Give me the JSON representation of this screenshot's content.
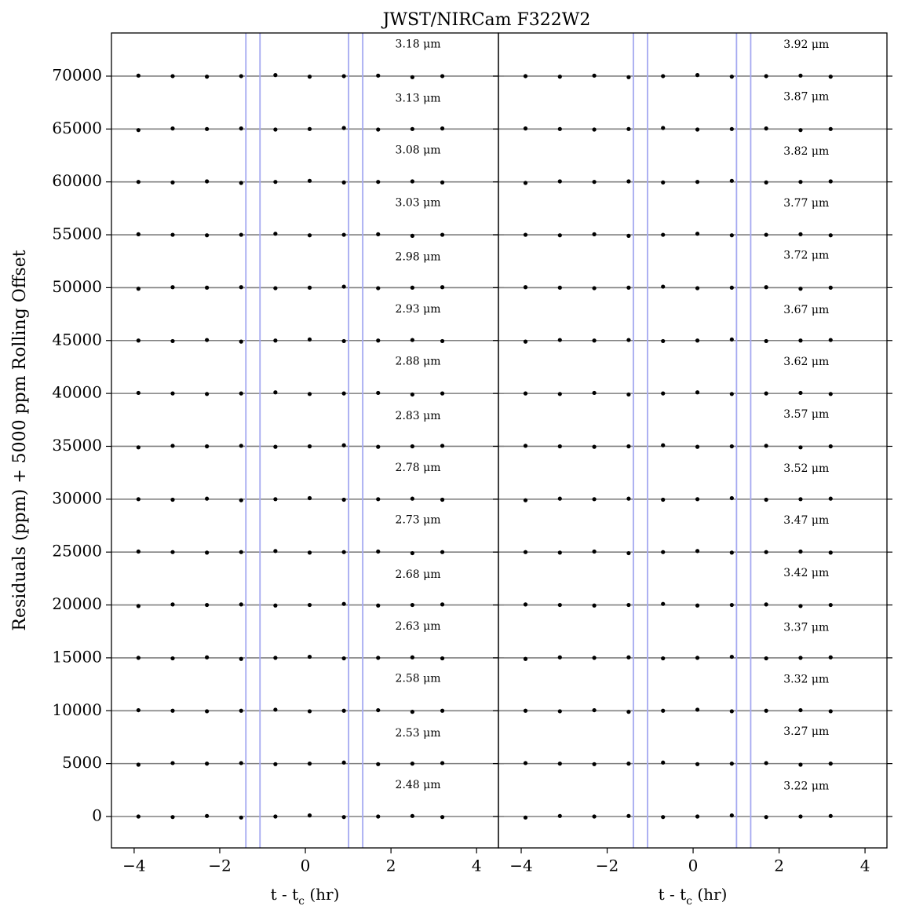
{
  "chart_data": [
    {
      "type": "scatter",
      "title": "JWST/NIRCam F322W2",
      "ylabel": "Residuals (ppm) + 5000 ppm Rolling Offset",
      "xlabel_parts": [
        "t - t",
        "c",
        " (hr)"
      ],
      "show_yticklabels": true,
      "xlim": [
        -4.53,
        4.51
      ],
      "ylim": [
        -2970,
        74080
      ],
      "xticks": [
        {
          "value": -4,
          "label": "−4"
        },
        {
          "value": -2,
          "label": "−2"
        },
        0,
        2,
        4
      ],
      "yticks": [
        0,
        5000,
        10000,
        15000,
        20000,
        25000,
        30000,
        35000,
        40000,
        45000,
        50000,
        55000,
        60000,
        65000,
        70000
      ],
      "grid": true,
      "grid_color": "#808080",
      "vlines": [
        -1.39,
        -1.06,
        1.01,
        1.34
      ],
      "vline_color": "#a4a8f0",
      "x": [
        -3.9,
        -3.1,
        -2.3,
        -1.5,
        -0.7,
        0.1,
        0.9,
        1.7,
        2.5,
        3.2
      ],
      "series": [
        {
          "name": "2.48 μm",
          "color": "#000000",
          "values": [
            0,
            -50,
            50,
            -100,
            0,
            100,
            -50,
            0,
            50,
            -50
          ]
        },
        {
          "name": "2.53 μm",
          "color": "#000000",
          "values": [
            4900,
            5050,
            5000,
            5050,
            4950,
            5000,
            5100,
            4950,
            5000,
            5050
          ]
        },
        {
          "name": "2.58 μm",
          "color": "#000000",
          "values": [
            10050,
            10000,
            9950,
            10000,
            10100,
            9950,
            10000,
            10050,
            9900,
            10000
          ]
        },
        {
          "name": "2.63 μm",
          "color": "#000000",
          "values": [
            15000,
            14950,
            15050,
            14900,
            15000,
            15100,
            14950,
            15000,
            15050,
            14950
          ]
        },
        {
          "name": "2.68 μm",
          "color": "#000000",
          "values": [
            19900,
            20050,
            20000,
            20050,
            19950,
            20000,
            20100,
            19950,
            20000,
            20050
          ]
        },
        {
          "name": "2.73 μm",
          "color": "#000000",
          "values": [
            25050,
            25000,
            24950,
            25000,
            25100,
            24950,
            25000,
            25050,
            24900,
            25000
          ]
        },
        {
          "name": "2.78 μm",
          "color": "#000000",
          "values": [
            30000,
            29950,
            30050,
            29900,
            30000,
            30100,
            29950,
            30000,
            30050,
            29950
          ]
        },
        {
          "name": "2.83 μm",
          "color": "#000000",
          "values": [
            34900,
            35050,
            35000,
            35050,
            34950,
            35000,
            35100,
            34950,
            35000,
            35050
          ]
        },
        {
          "name": "2.88 μm",
          "color": "#000000",
          "values": [
            40050,
            40000,
            39950,
            40000,
            40100,
            39950,
            40000,
            40050,
            39900,
            40000
          ]
        },
        {
          "name": "2.93 μm",
          "color": "#000000",
          "values": [
            45000,
            44950,
            45050,
            44900,
            45000,
            45100,
            44950,
            45000,
            45050,
            44950
          ]
        },
        {
          "name": "2.98 μm",
          "color": "#000000",
          "values": [
            49900,
            50050,
            50000,
            50050,
            49950,
            50000,
            50100,
            49950,
            50000,
            50050
          ]
        },
        {
          "name": "3.03 μm",
          "color": "#000000",
          "values": [
            55050,
            55000,
            54950,
            55000,
            55100,
            54950,
            55000,
            55050,
            54900,
            55000
          ]
        },
        {
          "name": "3.08 μm",
          "color": "#000000",
          "values": [
            60000,
            59950,
            60050,
            59900,
            60000,
            60100,
            59950,
            60000,
            60050,
            59950
          ]
        },
        {
          "name": "3.13 μm",
          "color": "#000000",
          "values": [
            64900,
            65050,
            65000,
            65050,
            64950,
            65000,
            65100,
            64950,
            65000,
            65050
          ]
        },
        {
          "name": "3.18 μm",
          "color": "#000000",
          "values": [
            70050,
            70000,
            69950,
            70000,
            70100,
            69950,
            70000,
            70050,
            69900,
            70000
          ]
        }
      ]
    },
    {
      "type": "scatter",
      "xlabel_parts": [
        "t - t",
        "c",
        " (hr)"
      ],
      "show_yticklabels": false,
      "xlim": [
        -4.53,
        4.51
      ],
      "ylim": [
        -2970,
        74080
      ],
      "xticks": [
        {
          "value": -4,
          "label": "−4"
        },
        {
          "value": -2,
          "label": "−2"
        },
        0,
        2,
        4
      ],
      "yticks": [
        0,
        5000,
        10000,
        15000,
        20000,
        25000,
        30000,
        35000,
        40000,
        45000,
        50000,
        55000,
        60000,
        65000,
        70000
      ],
      "grid": true,
      "grid_color": "#808080",
      "vlines": [
        -1.39,
        -1.06,
        1.01,
        1.34
      ],
      "vline_color": "#a4a8f0",
      "x": [
        -3.9,
        -3.1,
        -2.3,
        -1.5,
        -0.7,
        0.1,
        0.9,
        1.7,
        2.5,
        3.2
      ],
      "series": [
        {
          "name": "3.22 μm",
          "color": "#000000",
          "values": [
            -100,
            50,
            0,
            50,
            -50,
            0,
            100,
            -50,
            0,
            50
          ]
        },
        {
          "name": "3.27 μm",
          "color": "#000000",
          "values": [
            5050,
            5000,
            4950,
            5000,
            5100,
            4950,
            5000,
            5050,
            4900,
            5000
          ]
        },
        {
          "name": "3.32 μm",
          "color": "#000000",
          "values": [
            10000,
            9950,
            10050,
            9900,
            10000,
            10100,
            9950,
            10000,
            10050,
            9950
          ]
        },
        {
          "name": "3.37 μm",
          "color": "#000000",
          "values": [
            14900,
            15050,
            15000,
            15050,
            14950,
            15000,
            15100,
            14950,
            15000,
            15050
          ]
        },
        {
          "name": "3.42 μm",
          "color": "#000000",
          "values": [
            20050,
            20000,
            19950,
            20000,
            20100,
            19950,
            20000,
            20050,
            19900,
            20000
          ]
        },
        {
          "name": "3.47 μm",
          "color": "#000000",
          "values": [
            25000,
            24950,
            25050,
            24900,
            25000,
            25100,
            24950,
            25000,
            25050,
            24950
          ]
        },
        {
          "name": "3.52 μm",
          "color": "#000000",
          "values": [
            29900,
            30050,
            30000,
            30050,
            29950,
            30000,
            30100,
            29950,
            30000,
            30050
          ]
        },
        {
          "name": "3.57 μm",
          "color": "#000000",
          "values": [
            35050,
            35000,
            34950,
            35000,
            35100,
            34950,
            35000,
            35050,
            34900,
            35000
          ]
        },
        {
          "name": "3.62 μm",
          "color": "#000000",
          "values": [
            40000,
            39950,
            40050,
            39900,
            40000,
            40100,
            39950,
            40000,
            40050,
            39950
          ]
        },
        {
          "name": "3.67 μm",
          "color": "#000000",
          "values": [
            44900,
            45050,
            45000,
            45050,
            44950,
            45000,
            45100,
            44950,
            45000,
            45050
          ]
        },
        {
          "name": "3.72 μm",
          "color": "#000000",
          "values": [
            50050,
            50000,
            49950,
            50000,
            50100,
            49950,
            50000,
            50050,
            49900,
            50000
          ]
        },
        {
          "name": "3.77 μm",
          "color": "#000000",
          "values": [
            55000,
            54950,
            55050,
            54900,
            55000,
            55100,
            54950,
            55000,
            55050,
            54950
          ]
        },
        {
          "name": "3.82 μm",
          "color": "#000000",
          "values": [
            59900,
            60050,
            60000,
            60050,
            59950,
            60000,
            60100,
            59950,
            60000,
            60050
          ]
        },
        {
          "name": "3.87 μm",
          "color": "#000000",
          "values": [
            65050,
            65000,
            64950,
            65000,
            65100,
            64950,
            65000,
            65050,
            64900,
            65000
          ]
        },
        {
          "name": "3.92 μm",
          "color": "#000000",
          "values": [
            70000,
            69950,
            70050,
            69900,
            70000,
            70100,
            69950,
            70000,
            70050,
            69950
          ]
        }
      ]
    }
  ]
}
